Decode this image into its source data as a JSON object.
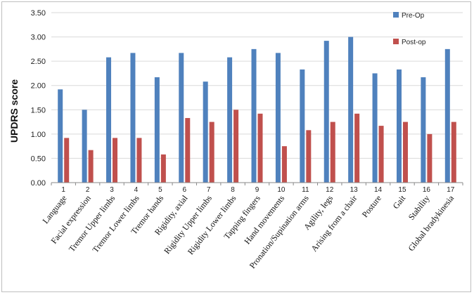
{
  "chart_data": {
    "type": "bar",
    "ylabel": "UPDRS score",
    "ylim": [
      0,
      3.5
    ],
    "yticks": [
      "0.00",
      "0.50",
      "1.00",
      "1.50",
      "2.00",
      "2.50",
      "3.00",
      "3.50"
    ],
    "legend_position": "top-right",
    "numbers": [
      "1",
      "2",
      "3",
      "4",
      "5",
      "6",
      "7",
      "8",
      "9",
      "10",
      "11",
      "12",
      "13",
      "14",
      "15",
      "16",
      "17"
    ],
    "categories": [
      "Language",
      "Facial expression",
      "Tremor Upper limbs",
      "Tremor Lower limbs",
      "Tremor hands",
      "Rigidity, axial",
      "Rigidity Upper limbs",
      "Rigidity Lower limbs",
      "Tapping fingers",
      "Hand movements",
      "Pronation/Supination arms",
      "Agility, legs",
      "Arising from a chair",
      "Posture",
      "Gait",
      "Stability",
      "Global bradykinesia"
    ],
    "series": [
      {
        "name": "Pre-Op",
        "color": "#4f81bd",
        "values": [
          1.92,
          1.5,
          2.58,
          2.67,
          2.17,
          2.67,
          2.08,
          2.58,
          2.75,
          2.67,
          2.33,
          2.92,
          3.0,
          2.25,
          2.33,
          2.17,
          2.75
        ]
      },
      {
        "name": "Post-op",
        "color": "#c0504d",
        "values": [
          0.92,
          0.67,
          0.92,
          0.92,
          0.58,
          1.33,
          1.25,
          1.5,
          1.42,
          0.75,
          1.08,
          1.25,
          1.42,
          1.17,
          1.25,
          1.0,
          1.25
        ]
      }
    ]
  }
}
